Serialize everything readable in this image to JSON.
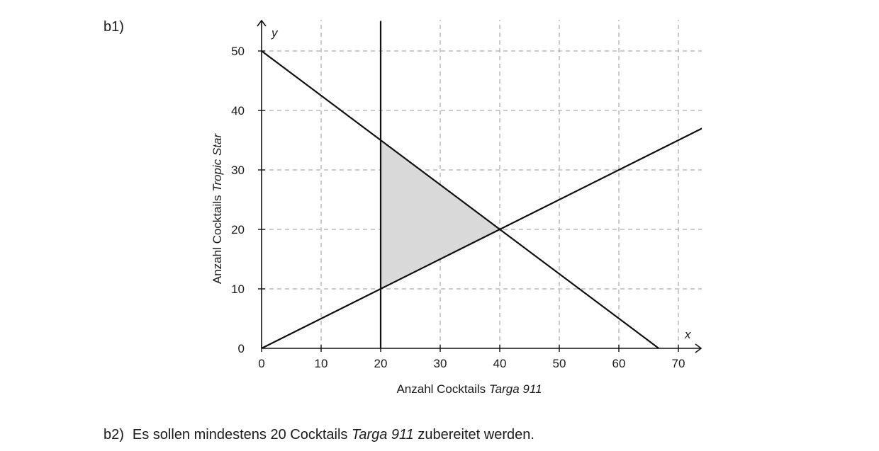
{
  "part_b1_label": "b1)",
  "part_b2": {
    "label": "b2)",
    "text_before": "Es sollen mindestens 20 Cocktails ",
    "text_italic": "Targa 911",
    "text_after": " zubereitet werden."
  },
  "chart_data": {
    "type": "line",
    "x_axis": {
      "name": "x",
      "label_plain": "Anzahl Cocktails ",
      "label_italic": "Targa 911",
      "ticks": [
        0,
        10,
        20,
        30,
        40,
        50,
        60,
        70
      ],
      "range": [
        0,
        73
      ]
    },
    "y_axis": {
      "name": "y",
      "label_plain": "Anzahl Cocktails ",
      "label_italic": "Tropic Star",
      "ticks": [
        0,
        10,
        20,
        30,
        40,
        50
      ],
      "range": [
        0,
        55
      ]
    },
    "grid": "dashed",
    "lines": [
      {
        "points": [
          [
            0,
            50
          ],
          [
            66.7,
            0
          ]
        ]
      },
      {
        "points": [
          [
            0,
            0
          ],
          [
            74,
            37
          ]
        ]
      },
      {
        "points": [
          [
            20,
            0
          ],
          [
            20,
            55
          ]
        ]
      }
    ],
    "shaded_region": {
      "vertices": [
        [
          20,
          10
        ],
        [
          20,
          35
        ],
        [
          40,
          20
        ]
      ],
      "color": "#d9d9d9"
    },
    "line_color": "#111111",
    "grid_color": "#9a9a9a"
  }
}
